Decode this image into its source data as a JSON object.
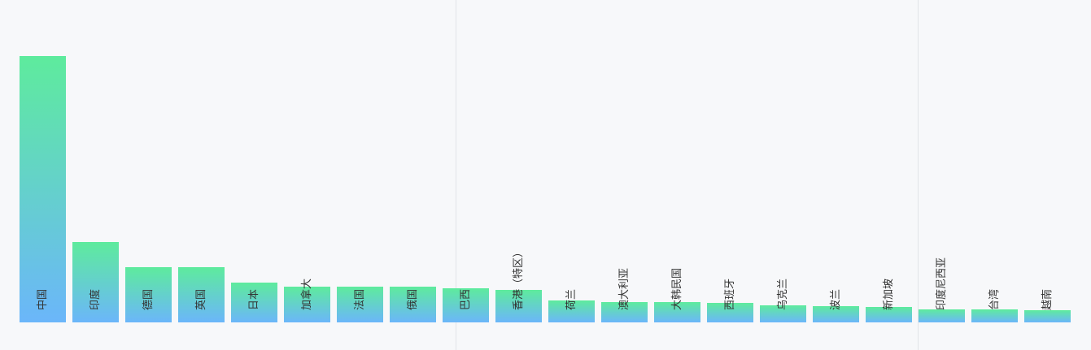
{
  "chart_data": {
    "type": "bar",
    "categories": [
      "中国",
      "印度",
      "德国",
      "英国",
      "日本",
      "加拿大",
      "法国",
      "俄国",
      "巴西",
      "香港（特区）",
      "荷兰",
      "澳大利亚",
      "大韩民国",
      "西班牙",
      "乌克兰",
      "波兰",
      "新加坡",
      "印度尼西亚",
      "台湾",
      "越南"
    ],
    "values": [
      328,
      99,
      68,
      68,
      49,
      44,
      44,
      44,
      42,
      40,
      27,
      25,
      25,
      24,
      21,
      20,
      19,
      16,
      16,
      15
    ],
    "gradient": [
      "#5eeb9d",
      "#6bb6fa"
    ],
    "ylim": [
      0,
      350
    ]
  }
}
